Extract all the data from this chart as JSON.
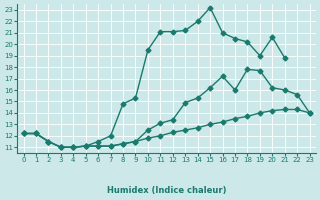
{
  "xlabel": "Humidex (Indice chaleur)",
  "bg_color": "#cce8e8",
  "line_color": "#1a7a6e",
  "xlim": [
    -0.5,
    23.5
  ],
  "ylim": [
    10.5,
    23.5
  ],
  "yticks": [
    11,
    12,
    13,
    14,
    15,
    16,
    17,
    18,
    19,
    20,
    21,
    22,
    23
  ],
  "xticks": [
    0,
    1,
    2,
    3,
    4,
    5,
    6,
    7,
    8,
    9,
    10,
    11,
    12,
    13,
    14,
    15,
    16,
    17,
    18,
    19,
    20,
    21,
    22,
    23
  ],
  "line1_x": [
    0,
    1,
    2,
    3,
    4,
    5,
    6,
    7,
    8,
    9,
    10,
    11,
    12,
    13,
    14,
    15,
    16,
    17,
    18,
    19,
    20,
    21,
    22,
    23
  ],
  "line1_y": [
    12.2,
    12.2,
    11.5,
    11.0,
    11.0,
    11.1,
    11.1,
    11.1,
    11.3,
    11.5,
    11.8,
    12.0,
    12.3,
    12.5,
    12.7,
    13.0,
    13.2,
    13.5,
    13.7,
    14.0,
    14.2,
    14.3,
    14.3,
    14.0
  ],
  "line2_x": [
    0,
    1,
    2,
    3,
    4,
    5,
    6,
    7,
    8,
    9,
    10,
    11,
    12,
    13,
    14,
    15,
    16,
    17,
    18,
    19,
    20,
    21,
    22,
    23
  ],
  "line2_y": [
    12.2,
    12.2,
    11.5,
    11.0,
    11.0,
    11.1,
    11.1,
    11.1,
    11.3,
    11.5,
    12.5,
    13.1,
    13.4,
    14.9,
    15.3,
    16.2,
    17.2,
    16.0,
    17.8,
    17.7,
    16.2,
    16.0,
    15.6,
    14.0
  ],
  "line3_x": [
    0,
    1,
    2,
    3,
    4,
    5,
    6,
    7,
    8,
    9,
    10,
    11,
    12,
    13,
    14,
    15,
    16,
    17,
    18,
    19,
    20,
    21,
    22,
    23
  ],
  "line3_y": [
    12.2,
    12.2,
    11.5,
    11.0,
    11.0,
    11.1,
    11.5,
    12.0,
    14.8,
    15.3,
    19.5,
    21.1,
    21.1,
    21.2,
    22.0,
    23.2,
    21.0,
    20.5,
    20.2,
    19.0,
    20.6,
    18.8,
    null,
    null
  ]
}
